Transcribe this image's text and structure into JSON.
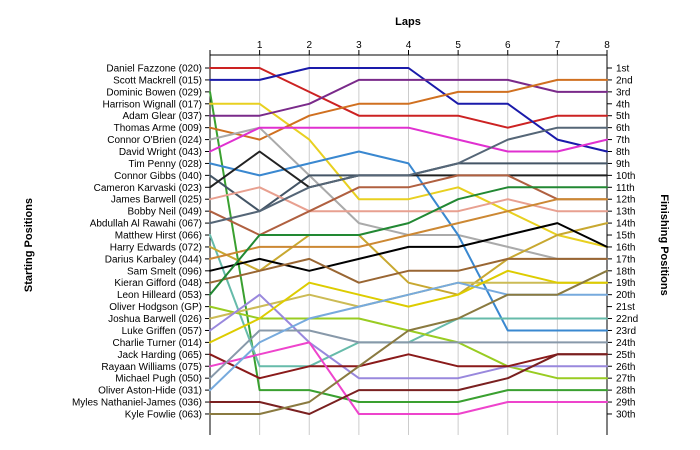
{
  "chart_data": {
    "type": "line",
    "title": "",
    "x_title": "Laps",
    "y_left_title": "Starting Positions",
    "y_right_title": "Finishing Positions",
    "x": [
      0,
      1,
      2,
      3,
      4,
      5,
      6,
      7,
      8
    ],
    "x_tick_labels": [
      "1",
      "2",
      "3",
      "4",
      "5",
      "6",
      "7",
      "8"
    ],
    "y_inverted": true,
    "ylim": [
      1,
      30
    ],
    "finishing_labels": [
      "1st",
      "2nd",
      "3rd",
      "4th",
      "5th",
      "6th",
      "7th",
      "8th",
      "9th",
      "10th",
      "11th",
      "12th",
      "13th",
      "14th",
      "15th",
      "16th",
      "17th",
      "18th",
      "19th",
      "20th",
      "21st",
      "22nd",
      "23rd",
      "24th",
      "25th",
      "26th",
      "27th",
      "28th",
      "29th",
      "30th"
    ],
    "grid": "vertical",
    "series": [
      {
        "name": "Daniel Fazzone (020)",
        "color": "#cc2222",
        "positions": [
          1,
          1,
          3,
          5,
          5,
          5,
          6,
          5,
          5
        ]
      },
      {
        "name": "Scott Mackrell (015)",
        "color": "#1a1aaa",
        "positions": [
          2,
          2,
          1,
          1,
          1,
          4,
          4,
          7,
          8
        ]
      },
      {
        "name": "Dominic Bowen (029)",
        "color": "#3aa030",
        "positions": [
          3,
          28,
          28,
          29,
          29,
          29,
          28,
          28,
          28
        ]
      },
      {
        "name": "Harrison Wignall (017)",
        "color": "#e8d020",
        "positions": [
          4,
          4,
          7,
          12,
          12,
          11,
          13,
          15,
          16
        ]
      },
      {
        "name": "Adam Glear (037)",
        "color": "#7a2a8a",
        "positions": [
          5,
          5,
          4,
          2,
          2,
          2,
          2,
          3,
          3
        ]
      },
      {
        "name": "Thomas Arme (009)",
        "color": "#d07020",
        "positions": [
          6,
          7,
          5,
          4,
          4,
          3,
          3,
          2,
          2
        ]
      },
      {
        "name": "Connor O'Brien (024)",
        "color": "#aaaaaa",
        "positions": [
          7,
          6,
          10,
          14,
          15,
          15,
          16,
          17,
          17
        ]
      },
      {
        "name": "David Wright (043)",
        "color": "#e030d0",
        "positions": [
          8,
          6,
          6,
          6,
          6,
          7,
          8,
          8,
          7
        ]
      },
      {
        "name": "Tim Penny (028)",
        "color": "#3a88d0",
        "positions": [
          9,
          10,
          9,
          8,
          9,
          15,
          23,
          23,
          23
        ]
      },
      {
        "name": "Connor Gibbs (040)",
        "color": "#445566",
        "positions": [
          10,
          13,
          10,
          10,
          10,
          9,
          9,
          9,
          9
        ]
      },
      {
        "name": "Cameron Karvaski (023)",
        "color": "#222222",
        "positions": [
          11,
          8,
          11,
          10,
          10,
          10,
          10,
          10,
          10
        ]
      },
      {
        "name": "James Barwell (025)",
        "color": "#e8a090",
        "positions": [
          12,
          11,
          13,
          13,
          13,
          13,
          12,
          13,
          13
        ]
      },
      {
        "name": "Bobby Neil (049)",
        "color": "#b06040",
        "positions": [
          13,
          15,
          13,
          11,
          11,
          10,
          10,
          12,
          12
        ]
      },
      {
        "name": "Abdullah Al Rawahi (067)",
        "color": "#556677",
        "positions": [
          14,
          13,
          11,
          10,
          10,
          9,
          7,
          6,
          6
        ]
      },
      {
        "name": "Matthew Hirst (066)",
        "color": "#66bbaa",
        "positions": [
          15,
          26,
          26,
          24,
          24,
          22,
          22,
          22,
          22
        ]
      },
      {
        "name": "Harry Edwards (072)",
        "color": "#c8a830",
        "positions": [
          16,
          18,
          15,
          15,
          19,
          20,
          17,
          15,
          14
        ]
      },
      {
        "name": "Darius Karbaley (044)",
        "color": "#cc8833",
        "positions": [
          17,
          16,
          16,
          16,
          15,
          14,
          13,
          12,
          12
        ]
      },
      {
        "name": "Sam Smelt (096)",
        "color": "#000000",
        "positions": [
          18,
          17,
          18,
          17,
          16,
          16,
          15,
          14,
          16
        ]
      },
      {
        "name": "Kieran Gifford (048)",
        "color": "#996633",
        "positions": [
          19,
          18,
          17,
          19,
          18,
          18,
          17,
          17,
          17
        ]
      },
      {
        "name": "Leon Hilleard (053)",
        "color": "#228833",
        "positions": [
          20,
          15,
          15,
          15,
          14,
          12,
          11,
          11,
          11
        ]
      },
      {
        "name": "Oliver Hodgson (GP)",
        "color": "#99cc22",
        "positions": [
          21,
          22,
          22,
          22,
          23,
          24,
          26,
          27,
          27
        ]
      },
      {
        "name": "Joshua Barwell (026)",
        "color": "#ccbb55",
        "positions": [
          22,
          21,
          20,
          21,
          20,
          19,
          19,
          19,
          19
        ]
      },
      {
        "name": "Luke Griffen (057)",
        "color": "#9988dd",
        "positions": [
          23,
          20,
          24,
          27,
          27,
          27,
          26,
          26,
          26
        ]
      },
      {
        "name": "Charlie Turner (014)",
        "color": "#ddcc00",
        "positions": [
          24,
          22,
          19,
          20,
          21,
          20,
          18,
          19,
          19
        ]
      },
      {
        "name": "Jack Harding (065)",
        "color": "#8a1a1a",
        "positions": [
          25,
          27,
          26,
          26,
          25,
          26,
          26,
          25,
          25
        ]
      },
      {
        "name": "Rayaan Williams (075)",
        "color": "#ee44cc",
        "positions": [
          26,
          25,
          24,
          30,
          30,
          30,
          29,
          29,
          29
        ]
      },
      {
        "name": "Michael Pugh (050)",
        "color": "#8899aa",
        "positions": [
          27,
          23,
          23,
          24,
          24,
          24,
          24,
          24,
          24
        ]
      },
      {
        "name": "Oliver Aston-Hide (031)",
        "color": "#77aadd",
        "positions": [
          28,
          24,
          22,
          21,
          20,
          19,
          20,
          20,
          20
        ]
      },
      {
        "name": "Myles Nathaniel-James (036)",
        "color": "#7a2020",
        "positions": [
          29,
          29,
          30,
          28,
          28,
          28,
          27,
          25,
          25
        ]
      },
      {
        "name": "Kyle Fowlie (063)",
        "color": "#8a7a40",
        "positions": [
          30,
          30,
          29,
          26,
          23,
          22,
          20,
          20,
          18
        ]
      }
    ]
  }
}
